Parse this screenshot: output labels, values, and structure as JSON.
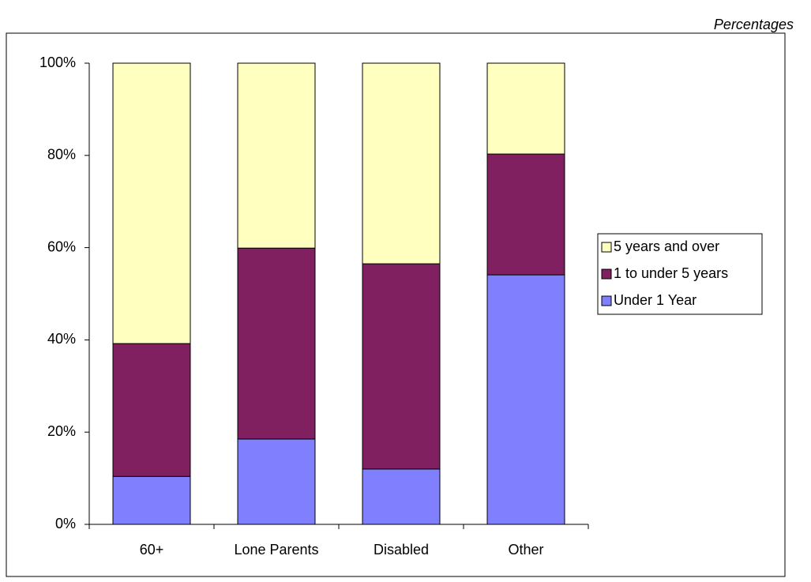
{
  "chart_data": {
    "type": "stacked_bar",
    "subtitle": "Percentages",
    "categories": [
      "60+",
      "Lone Parents",
      "Disabled",
      "Other"
    ],
    "series": [
      {
        "name": "Under 1 Year",
        "color": "#8080ff",
        "values": [
          10.4,
          18.5,
          12.0,
          54.1
        ]
      },
      {
        "name": "1 to under 5 years",
        "color": "#802060",
        "values": [
          28.8,
          41.4,
          44.5,
          26.2
        ]
      },
      {
        "name": "5 years and over",
        "color": "#ffffc0",
        "values": [
          60.8,
          40.1,
          43.5,
          19.7
        ]
      }
    ],
    "ylim": [
      0,
      100
    ],
    "yticks": [
      {
        "value": 0,
        "label": "0%"
      },
      {
        "value": 20,
        "label": "20%"
      },
      {
        "value": 40,
        "label": "40%"
      },
      {
        "value": 60,
        "label": "60%"
      },
      {
        "value": 80,
        "label": "80%"
      },
      {
        "value": 100,
        "label": "100%"
      }
    ],
    "grid": false,
    "legend": "right"
  }
}
